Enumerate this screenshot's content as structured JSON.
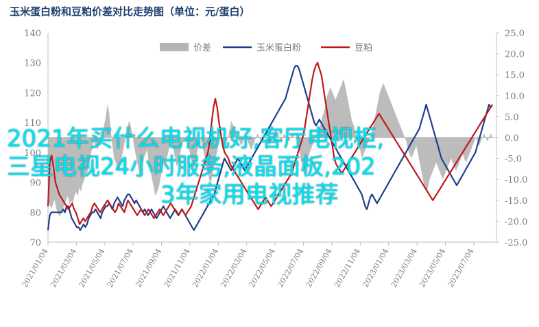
{
  "chart_data": {
    "type": "line",
    "title": "玉米蛋白粉和豆粕价差对比走势图（单位：元/蛋白）",
    "left_axis": {
      "ylim": [
        70,
        140
      ],
      "ticks": [
        70,
        80,
        90,
        100,
        110,
        120,
        130,
        140
      ]
    },
    "right_axis": {
      "ylim": [
        -25,
        25
      ],
      "ticks": [
        "-25.0",
        "-20.0",
        "-15.0",
        "-10.0",
        "-5.0",
        "0.0",
        "5.0",
        "10.0",
        "15.0",
        "20.0",
        "25.0"
      ]
    },
    "x_ticks": [
      "2021/01/04",
      "2021/03/04",
      "2021/05/04",
      "2021/07/04",
      "2021/09/04",
      "2021/11/04",
      "2022/01/04",
      "2022/03/04",
      "2022/05/04",
      "2022/07/04",
      "2022/09/04",
      "2022/11/04",
      "2023/01/04",
      "2023/03/04",
      "2023/05/04",
      "2023/07/04"
    ],
    "legend": {
      "placement": "top-center"
    },
    "series": [
      {
        "name": "价差",
        "axis": "right",
        "kind": "area",
        "color": "#b5b5b5",
        "values": [
          -15,
          -16,
          -17,
          -16,
          -15,
          -17,
          -18,
          -19,
          -18,
          -17,
          -16,
          -15,
          -14,
          -16,
          -15,
          -16,
          -14,
          -13,
          -14,
          -12,
          -13,
          -11,
          -10,
          -9,
          -8,
          -6,
          -4,
          -2,
          -1,
          -2,
          -3,
          -1,
          0,
          1,
          3,
          5,
          8,
          6,
          2,
          -2,
          -5,
          -6,
          -7,
          -8,
          -6,
          -4,
          -2,
          0,
          2,
          4,
          3,
          1,
          -2,
          -4,
          -6,
          -8,
          -10,
          -7,
          -5,
          -4,
          -3,
          -6,
          -8,
          -10,
          -12,
          -14,
          -13,
          -12,
          -10,
          -8,
          -6,
          -7,
          -5,
          -3,
          -2,
          -1,
          -3,
          -5,
          -7,
          -6,
          -4,
          -2,
          -1,
          0,
          -1,
          -2,
          -4,
          -6,
          -8,
          -6,
          -4,
          -2,
          0,
          -1,
          -3,
          -5,
          -7,
          -9,
          -11,
          -10,
          -8,
          -6,
          -4,
          -2,
          0,
          -1,
          -2,
          -3,
          -1,
          0,
          2,
          4,
          3,
          2,
          1,
          0,
          -1,
          -2,
          -1,
          0,
          1,
          -1,
          -2,
          -3,
          -2,
          -1,
          0,
          1,
          0,
          -1,
          0,
          1,
          0,
          -1,
          -2,
          -1,
          0,
          1,
          2,
          1,
          0,
          -1,
          0,
          1,
          0,
          0,
          -1,
          0,
          1,
          0,
          0,
          -1,
          -3,
          -5,
          -7,
          -9,
          -8,
          -6,
          -4,
          -3,
          -2,
          -1,
          0,
          1,
          2,
          3,
          5,
          6,
          8,
          10,
          11,
          12,
          11,
          10,
          9,
          10,
          11,
          12,
          13,
          14,
          12,
          10,
          8,
          6,
          4,
          3,
          1,
          0,
          -1,
          -3,
          -5,
          -4,
          -3,
          -2,
          -1,
          0,
          1,
          3,
          5,
          7,
          9,
          11,
          12,
          13,
          12,
          11,
          10,
          9,
          8,
          7,
          6,
          5,
          4,
          3,
          2,
          1,
          0,
          -1,
          -3,
          -4,
          -5,
          -4,
          -3,
          -2,
          -4,
          -6,
          -8,
          -10,
          -12,
          -13,
          -12,
          -10,
          -9,
          -8,
          -7,
          -6,
          -7,
          -8,
          -9,
          -10,
          -9,
          -8,
          -7,
          -6,
          -5,
          -6,
          -7,
          -8,
          -7,
          -6,
          -5,
          -4,
          -5,
          -6,
          -5,
          -4,
          -3,
          -2,
          -1,
          0,
          -1,
          -2,
          -1,
          0,
          1,
          0,
          -1,
          0,
          1,
          0
        ]
      },
      {
        "name": "玉米蛋白粉",
        "axis": "left",
        "kind": "line",
        "color": "#1f3f8a",
        "values": [
          74,
          79,
          80,
          80,
          80,
          80,
          80,
          80,
          80,
          81,
          80,
          82,
          82,
          80,
          78,
          77,
          76,
          75,
          75,
          74,
          75,
          76,
          75,
          76,
          78,
          79,
          80,
          80,
          81,
          80,
          79,
          78,
          80,
          81,
          82,
          82,
          83,
          82,
          81,
          83,
          84,
          85,
          84,
          83,
          82,
          84,
          85,
          86,
          86,
          85,
          84,
          83,
          84,
          83,
          82,
          81,
          80,
          81,
          80,
          79,
          80,
          81,
          80,
          79,
          78,
          79,
          80,
          81,
          82,
          81,
          80,
          79,
          78,
          79,
          80,
          81,
          80,
          79,
          80,
          81,
          80,
          79,
          78,
          77,
          76,
          75,
          74,
          75,
          76,
          77,
          78,
          79,
          80,
          81,
          82,
          83,
          84,
          85,
          86,
          88,
          90,
          92,
          94,
          96,
          98,
          97,
          96,
          95,
          94,
          95,
          96,
          97,
          98,
          97,
          96,
          95,
          94,
          95,
          96,
          97,
          98,
          99,
          100,
          101,
          102,
          103,
          104,
          105,
          106,
          107,
          108,
          109,
          110,
          111,
          112,
          113,
          114,
          115,
          116,
          117,
          118,
          120,
          122,
          124,
          126,
          128,
          129,
          129,
          128,
          126,
          124,
          122,
          120,
          118,
          116,
          114,
          112,
          110,
          109,
          110,
          111,
          110,
          109,
          108,
          107,
          106,
          105,
          104,
          103,
          102,
          101,
          100,
          99,
          98,
          97,
          96,
          95,
          94,
          93,
          92,
          91,
          90,
          89,
          88,
          87,
          86,
          84,
          82,
          81,
          83,
          85,
          86,
          85,
          84,
          83,
          84,
          85,
          86,
          87,
          88,
          89,
          90,
          91,
          92,
          93,
          94,
          95,
          96,
          97,
          98,
          99,
          100,
          101,
          102,
          103,
          104,
          105,
          106,
          107,
          108,
          110,
          112,
          114,
          116,
          114,
          112,
          110,
          108,
          106,
          104,
          102,
          100,
          98,
          97,
          96,
          95,
          94,
          93,
          92,
          91,
          90,
          89,
          90,
          91,
          92,
          93,
          94,
          95,
          96,
          97,
          98,
          99,
          100,
          102,
          104,
          106,
          108,
          110,
          112,
          114,
          116,
          115,
          116
        ]
      },
      {
        "name": "豆粕",
        "axis": "left",
        "kind": "line",
        "color": "#c01818",
        "values": [
          82,
          97,
          99,
          95,
          90,
          88,
          86,
          85,
          84,
          83,
          82,
          81,
          82,
          83,
          81,
          80,
          78,
          76,
          77,
          78,
          77,
          78,
          79,
          80,
          82,
          83,
          82,
          81,
          80,
          81,
          82,
          83,
          84,
          83,
          82,
          81,
          80,
          81,
          83,
          82,
          81,
          80,
          82,
          84,
          83,
          82,
          81,
          80,
          79,
          80,
          81,
          80,
          79,
          80,
          81,
          80,
          79,
          78,
          79,
          80,
          81,
          80,
          79,
          80,
          81,
          82,
          83,
          82,
          81,
          80,
          79,
          80,
          81,
          80,
          79,
          80,
          81,
          82,
          84,
          86,
          88,
          90,
          92,
          94,
          96,
          98,
          100,
          104,
          110,
          115,
          118,
          115,
          110,
          106,
          102,
          100,
          99,
          98,
          96,
          95,
          94,
          93,
          92,
          91,
          90,
          89,
          88,
          87,
          86,
          85,
          84,
          83,
          82,
          81,
          82,
          83,
          84,
          85,
          84,
          83,
          82,
          83,
          84,
          85,
          86,
          87,
          88,
          89,
          90,
          91,
          92,
          93,
          95,
          97,
          99,
          101,
          103,
          105,
          108,
          112,
          116,
          120,
          124,
          127,
          129,
          130,
          128,
          126,
          122,
          118,
          114,
          110,
          106,
          102,
          98,
          96,
          95,
          94,
          93,
          94,
          95,
          96,
          97,
          98,
          99,
          100,
          101,
          102,
          103,
          104,
          105,
          106,
          107,
          108,
          109,
          110,
          111,
          112,
          113,
          112,
          111,
          110,
          109,
          108,
          107,
          106,
          105,
          104,
          103,
          102,
          101,
          100,
          99,
          98,
          97,
          96,
          95,
          94,
          93,
          92,
          91,
          90,
          89,
          88,
          87,
          86,
          85,
          84,
          85,
          86,
          87,
          88,
          89,
          90,
          91,
          92,
          93,
          94,
          95,
          96,
          97,
          98,
          99,
          100,
          101,
          102,
          103,
          104,
          105,
          106,
          107,
          108,
          109,
          110,
          111,
          112,
          113,
          114,
          115,
          116
        ]
      }
    ]
  },
  "overlay": {
    "line1": "2021年买什么电视机好,客厅电视柜,",
    "line2": "三星电视24小时服务,液晶面板,202",
    "line3": "3年家用电视推荐"
  }
}
